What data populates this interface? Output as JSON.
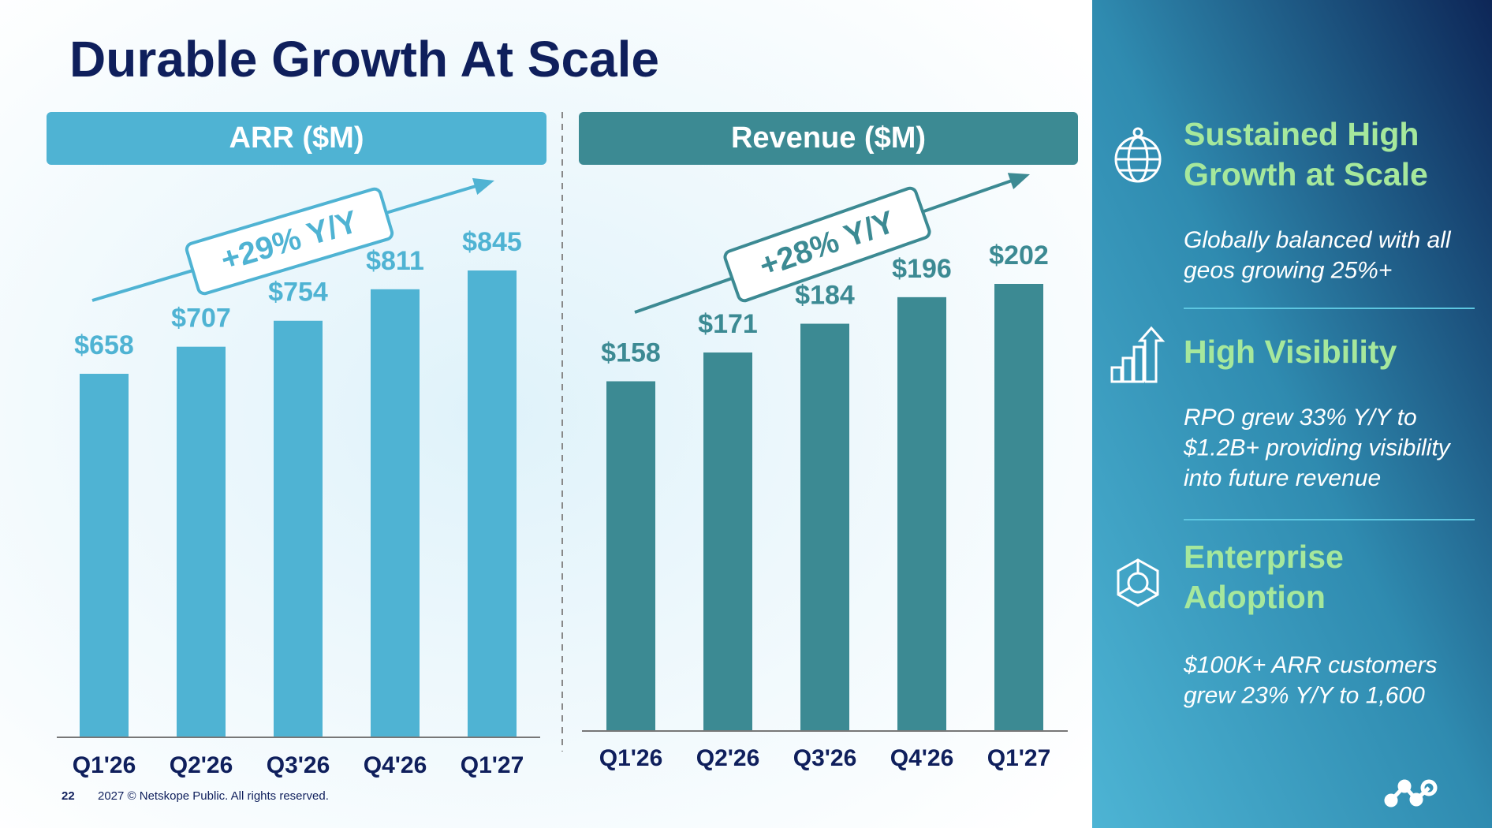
{
  "title": "Durable Growth At Scale",
  "chart_data": [
    {
      "type": "bar",
      "title": "ARR ($M)",
      "categories": [
        "Q1'26",
        "Q2'26",
        "Q3'26",
        "Q4'26",
        "Q1'27"
      ],
      "values": [
        658,
        707,
        754,
        811,
        845
      ],
      "value_labels": [
        "$658",
        "$707",
        "$754",
        "$811",
        "$845"
      ],
      "color": "#4fb3d3",
      "annotation": "+29% Y/Y"
    },
    {
      "type": "bar",
      "title": "Revenue ($M)",
      "categories": [
        "Q1'26",
        "Q2'26",
        "Q3'26",
        "Q4'26",
        "Q1'27"
      ],
      "values": [
        158,
        171,
        184,
        196,
        202
      ],
      "value_labels": [
        "$158",
        "$171",
        "$184",
        "$196",
        "$202"
      ],
      "color": "#3c8a93",
      "annotation": "+28% Y/Y"
    }
  ],
  "sidebar": [
    {
      "heading": [
        "Sustained High",
        "Growth at Scale"
      ],
      "body": [
        "Globally balanced with all",
        "geos growing 25%+"
      ]
    },
    {
      "heading": [
        "High Visibility"
      ],
      "body": [
        "RPO grew 33% Y/Y to",
        "$1.2B+ providing visibility",
        "into future revenue"
      ]
    },
    {
      "heading": [
        "Enterprise",
        "Adoption"
      ],
      "body": [
        "$100K+ ARR customers",
        "grew 23% Y/Y to 1,600"
      ]
    }
  ],
  "footer": {
    "page": "22",
    "text": "2027 © Netskope Public. All rights reserved."
  }
}
